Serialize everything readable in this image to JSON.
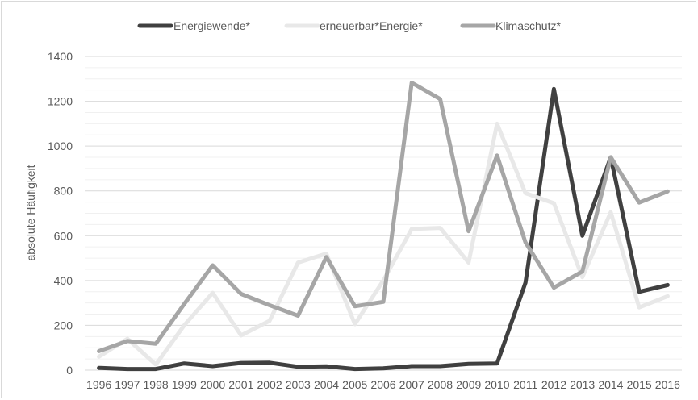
{
  "chart_data": {
    "type": "line",
    "title": "",
    "xlabel": "",
    "ylabel": "absolute Häufigkeit",
    "ylim": [
      0,
      1400
    ],
    "y_ticks": [
      0,
      200,
      400,
      600,
      800,
      1000,
      1200,
      1400
    ],
    "y_tick_labels": [
      "0",
      "200",
      "400",
      "600",
      "800",
      "1000",
      "1200",
      "1400"
    ],
    "grid": true,
    "minor_grid": true,
    "legend_position": "top",
    "categories": [
      "1996",
      "1997",
      "1998",
      "1999",
      "2000",
      "2001",
      "2002",
      "2003",
      "2004",
      "2005",
      "2006",
      "2007",
      "2008",
      "2009",
      "2010",
      "2011",
      "2012",
      "2013",
      "2014",
      "2015",
      "2016"
    ],
    "series": [
      {
        "name": "Energiewende*",
        "color": "#404040",
        "values": [
          10,
          5,
          5,
          30,
          18,
          32,
          33,
          15,
          17,
          5,
          8,
          18,
          18,
          28,
          30,
          390,
          1255,
          600,
          950,
          350,
          380
        ]
      },
      {
        "name": "erneuerbar*Energie*",
        "color": "#e8e8e8",
        "values": [
          60,
          140,
          25,
          200,
          345,
          155,
          220,
          480,
          520,
          205,
          400,
          630,
          635,
          480,
          1100,
          790,
          745,
          415,
          705,
          280,
          330
        ]
      },
      {
        "name": "Klimaschutz*",
        "color": "#a6a6a6",
        "values": [
          85,
          130,
          118,
          295,
          468,
          340,
          290,
          243,
          505,
          285,
          305,
          1283,
          1210,
          620,
          958,
          570,
          368,
          440,
          950,
          748,
          798
        ]
      }
    ]
  }
}
